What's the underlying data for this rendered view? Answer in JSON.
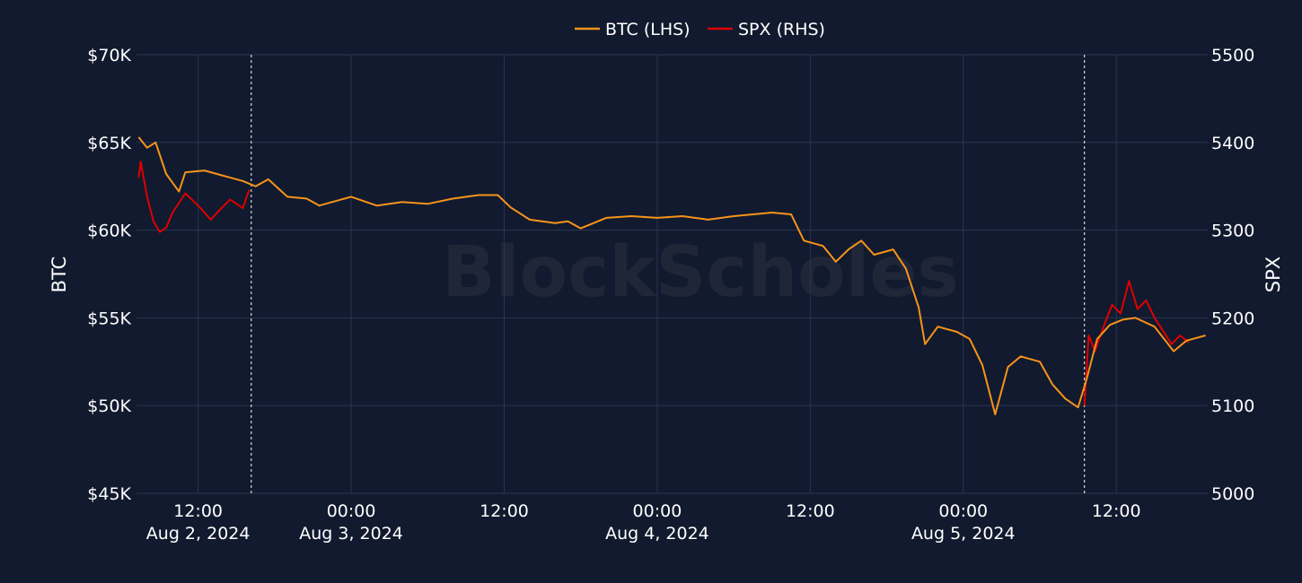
{
  "watermark": "BlockScholes",
  "colors": {
    "background": "#111a2e",
    "grid": "#2a3550",
    "btc": "#f7931a",
    "spx": "#e00000",
    "text": "#ffffff"
  },
  "chart_data": {
    "type": "line",
    "title": "",
    "legend": {
      "placement": "top-center"
    },
    "grid": true,
    "x": {
      "range": [
        "2024-08-02T07:10",
        "2024-08-05T19:10"
      ],
      "ticks": [
        {
          "value": "2024-08-02T12:00",
          "line1": "12:00",
          "line2": "Aug 2, 2024"
        },
        {
          "value": "2024-08-03T00:00",
          "line1": "00:00",
          "line2": "Aug 3, 2024"
        },
        {
          "value": "2024-08-03T12:00",
          "line1": "12:00",
          "line2": ""
        },
        {
          "value": "2024-08-04T00:00",
          "line1": "00:00",
          "line2": "Aug 4, 2024"
        },
        {
          "value": "2024-08-04T12:00",
          "line1": "12:00",
          "line2": ""
        },
        {
          "value": "2024-08-05T00:00",
          "line1": "00:00",
          "line2": "Aug 5, 2024"
        },
        {
          "value": "2024-08-05T12:00",
          "line1": "12:00",
          "line2": ""
        }
      ],
      "markers": [
        "2024-08-02T16:10",
        "2024-08-05T09:30"
      ]
    },
    "y_left": {
      "label": "BTC",
      "range": [
        45000,
        70000
      ],
      "ticks": [
        45000,
        50000,
        55000,
        60000,
        65000,
        70000
      ],
      "tick_labels": [
        "$45K",
        "$50K",
        "$55K",
        "$60K",
        "$65K",
        "$70K"
      ]
    },
    "y_right": {
      "label": "SPX",
      "range": [
        5000,
        5500
      ],
      "ticks": [
        5000,
        5100,
        5200,
        5300,
        5400,
        5500
      ],
      "tick_labels": [
        "5000",
        "5100",
        "5200",
        "5300",
        "5400",
        "5500"
      ]
    },
    "series": [
      {
        "name": "BTC (LHS)",
        "axis": "left",
        "points": [
          [
            "2024-08-02T07:20",
            65300
          ],
          [
            "2024-08-02T08:00",
            64700
          ],
          [
            "2024-08-02T08:40",
            65000
          ],
          [
            "2024-08-02T09:30",
            63200
          ],
          [
            "2024-08-02T10:30",
            62200
          ],
          [
            "2024-08-02T11:00",
            63300
          ],
          [
            "2024-08-02T12:30",
            63400
          ],
          [
            "2024-08-02T14:00",
            63100
          ],
          [
            "2024-08-02T15:30",
            62800
          ],
          [
            "2024-08-02T16:30",
            62500
          ],
          [
            "2024-08-02T17:30",
            62900
          ],
          [
            "2024-08-02T19:00",
            61900
          ],
          [
            "2024-08-02T20:30",
            61800
          ],
          [
            "2024-08-02T21:30",
            61400
          ],
          [
            "2024-08-02T23:00",
            61700
          ],
          [
            "2024-08-03T00:00",
            61900
          ],
          [
            "2024-08-03T02:00",
            61400
          ],
          [
            "2024-08-03T04:00",
            61600
          ],
          [
            "2024-08-03T06:00",
            61500
          ],
          [
            "2024-08-03T08:00",
            61800
          ],
          [
            "2024-08-03T10:00",
            62000
          ],
          [
            "2024-08-03T11:30",
            62000
          ],
          [
            "2024-08-03T12:30",
            61300
          ],
          [
            "2024-08-03T14:00",
            60600
          ],
          [
            "2024-08-03T16:00",
            60400
          ],
          [
            "2024-08-03T17:00",
            60500
          ],
          [
            "2024-08-03T18:00",
            60100
          ],
          [
            "2024-08-03T20:00",
            60700
          ],
          [
            "2024-08-03T22:00",
            60800
          ],
          [
            "2024-08-04T00:00",
            60700
          ],
          [
            "2024-08-04T02:00",
            60800
          ],
          [
            "2024-08-04T04:00",
            60600
          ],
          [
            "2024-08-04T06:00",
            60800
          ],
          [
            "2024-08-04T09:00",
            61000
          ],
          [
            "2024-08-04T10:30",
            60900
          ],
          [
            "2024-08-04T11:30",
            59400
          ],
          [
            "2024-08-04T13:00",
            59100
          ],
          [
            "2024-08-04T14:00",
            58200
          ],
          [
            "2024-08-04T15:00",
            58900
          ],
          [
            "2024-08-04T16:00",
            59400
          ],
          [
            "2024-08-04T17:00",
            58600
          ],
          [
            "2024-08-04T18:30",
            58900
          ],
          [
            "2024-08-04T19:30",
            57800
          ],
          [
            "2024-08-04T20:30",
            55600
          ],
          [
            "2024-08-04T21:00",
            53500
          ],
          [
            "2024-08-04T22:00",
            54500
          ],
          [
            "2024-08-04T23:30",
            54200
          ],
          [
            "2024-08-05T00:30",
            53800
          ],
          [
            "2024-08-05T01:30",
            52300
          ],
          [
            "2024-08-05T02:30",
            49500
          ],
          [
            "2024-08-05T03:30",
            52200
          ],
          [
            "2024-08-05T04:30",
            52800
          ],
          [
            "2024-08-05T06:00",
            52500
          ],
          [
            "2024-08-05T07:00",
            51200
          ],
          [
            "2024-08-05T08:00",
            50400
          ],
          [
            "2024-08-05T09:00",
            49900
          ],
          [
            "2024-08-05T09:40",
            51500
          ],
          [
            "2024-08-05T10:30",
            53800
          ],
          [
            "2024-08-05T11:30",
            54600
          ],
          [
            "2024-08-05T12:30",
            54900
          ],
          [
            "2024-08-05T13:30",
            55000
          ],
          [
            "2024-08-05T15:00",
            54500
          ],
          [
            "2024-08-05T16:30",
            53100
          ],
          [
            "2024-08-05T17:30",
            53700
          ],
          [
            "2024-08-05T19:00",
            54000
          ]
        ]
      },
      {
        "name": "SPX (RHS)",
        "axis": "right",
        "segments": [
          [
            [
              "2024-08-02T07:20",
              5360
            ],
            [
              "2024-08-02T07:30",
              5378
            ],
            [
              "2024-08-02T08:00",
              5338
            ],
            [
              "2024-08-02T08:30",
              5310
            ],
            [
              "2024-08-02T09:00",
              5298
            ],
            [
              "2024-08-02T09:30",
              5303
            ],
            [
              "2024-08-02T10:00",
              5320
            ],
            [
              "2024-08-02T11:00",
              5342
            ],
            [
              "2024-08-02T12:00",
              5328
            ],
            [
              "2024-08-02T13:00",
              5312
            ],
            [
              "2024-08-02T13:30",
              5320
            ],
            [
              "2024-08-02T14:30",
              5335
            ],
            [
              "2024-08-02T15:30",
              5325
            ],
            [
              "2024-08-02T16:00",
              5346
            ]
          ],
          [
            [
              "2024-08-05T09:30",
              5100
            ],
            [
              "2024-08-05T09:50",
              5180
            ],
            [
              "2024-08-05T10:20",
              5162
            ],
            [
              "2024-08-05T11:00",
              5190
            ],
            [
              "2024-08-05T11:40",
              5215
            ],
            [
              "2024-08-05T12:20",
              5205
            ],
            [
              "2024-08-05T13:00",
              5242
            ],
            [
              "2024-08-05T13:40",
              5210
            ],
            [
              "2024-08-05T14:20",
              5220
            ],
            [
              "2024-08-05T15:00",
              5200
            ],
            [
              "2024-08-05T15:40",
              5185
            ],
            [
              "2024-08-05T16:20",
              5170
            ],
            [
              "2024-08-05T17:00",
              5180
            ],
            [
              "2024-08-05T17:40",
              5172
            ]
          ]
        ]
      }
    ]
  }
}
